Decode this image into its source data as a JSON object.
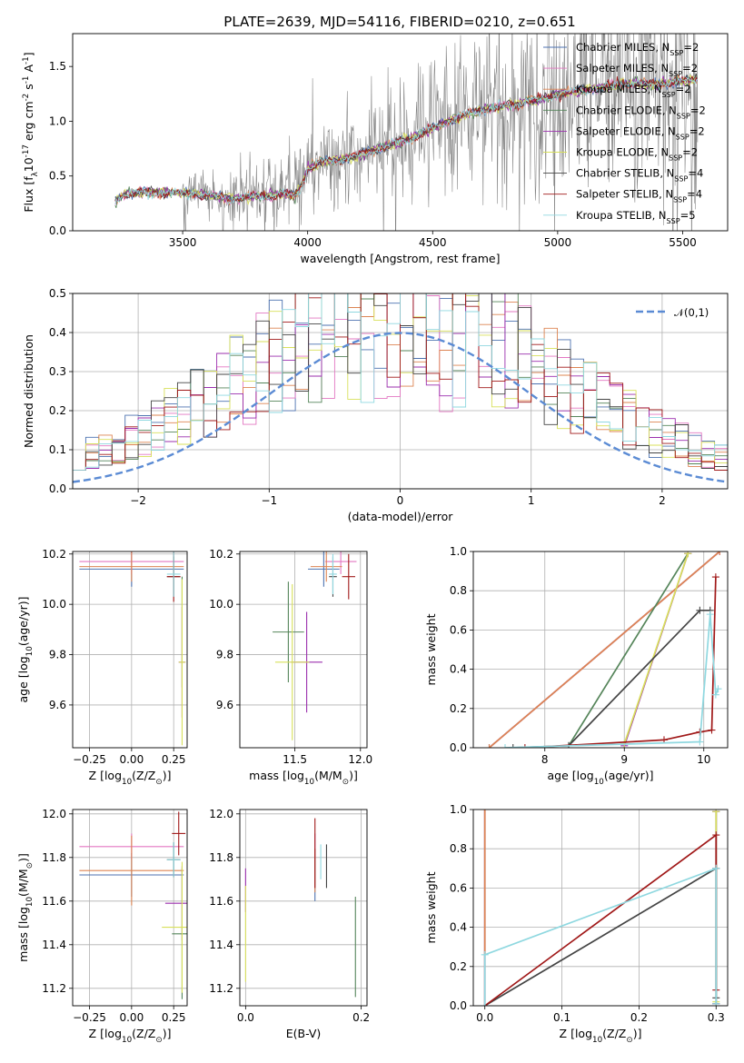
{
  "title": "PLATE=2639, MJD=54116, FIBERID=0210, z=0.651",
  "colors": {
    "chabrier_miles": "#4c72b0",
    "salpeter_miles": "#e377c2",
    "kroupa_miles": "#dd8452",
    "chabrier_elodie": "#55855a",
    "salpeter_elodie": "#9b2fae",
    "kroupa_elodie": "#d8e05a",
    "chabrier_stelib": "#444444",
    "salpeter_stelib": "#a01818",
    "kroupa_stelib": "#8fd8e0",
    "data": "#808080",
    "normal": "#5b8bd4"
  },
  "chart_data": [
    {
      "id": "spectrum",
      "type": "line",
      "title": "PLATE=2639, MJD=54116, FIBERID=0210, z=0.651",
      "xlabel": "wavelength [Angstrom, rest frame]",
      "ylabel": "Flux [f$_\\lambda$10$^{-17}$ erg cm$^{-2}$ s$^{-1}$ A$^{-1}$]",
      "xlim": [
        3060,
        5680
      ],
      "ylim": [
        0,
        1.8
      ],
      "xticks": [
        3500,
        4000,
        4500,
        5000,
        5500
      ],
      "yticks": [
        0.0,
        0.5,
        1.0,
        1.5
      ],
      "grid": false,
      "legend_position": "top-right",
      "legend": [
        "Chabrier MILES, N$_{SSP}$=2",
        "Salpeter MILES, N$_{SSP}$=2",
        "Kroupa MILES, N$_{SSP}$=2",
        "Chabrier ELODIE, N$_{SSP}$=2",
        "Salpeter ELODIE, N$_{SSP}$=2",
        "Kroupa ELODIE, N$_{SSP}$=2",
        "Chabrier STELIB, N$_{SSP}$=4",
        "Salpeter STELIB, N$_{SSP}$=4",
        "Kroupa STELIB, N$_{SSP}$=5"
      ],
      "model_knots": {
        "x": [
          3230,
          3260,
          3300,
          3400,
          3500,
          3600,
          3700,
          3800,
          3900,
          3950,
          3980,
          4000,
          4050,
          4100,
          4200,
          4300,
          4400,
          4500,
          4600,
          4700,
          4800,
          4900,
          5000,
          5100,
          5200,
          5300,
          5400,
          5500,
          5560
        ],
        "y": [
          0.28,
          0.34,
          0.36,
          0.37,
          0.36,
          0.34,
          0.31,
          0.33,
          0.35,
          0.33,
          0.45,
          0.58,
          0.64,
          0.65,
          0.7,
          0.78,
          0.85,
          0.95,
          1.05,
          1.12,
          1.16,
          1.2,
          1.26,
          1.3,
          1.33,
          1.36,
          1.35,
          1.38,
          1.4
        ]
      }
    },
    {
      "id": "residual-histogram",
      "type": "line",
      "xlabel": "(data-model)/error",
      "ylabel": "Normed distribution",
      "xlim": [
        -2.5,
        2.5
      ],
      "ylim": [
        0,
        0.5
      ],
      "xticks": [
        -2,
        -1,
        0,
        1,
        2
      ],
      "yticks": [
        0.0,
        0.1,
        0.2,
        0.3,
        0.4,
        0.5
      ],
      "grid": true,
      "legend_position": "top-right",
      "legend": [
        "$\\mathcal{N}(0,1)$"
      ],
      "bin_width": 0.1
    },
    {
      "id": "age-vs-metallicity",
      "type": "scatter",
      "xlabel": "Z [log$_{10}$(Z/Z$_\\odot$)]",
      "ylabel": "age  [log$_{10}$(age/yr)]",
      "xlim": [
        -0.35,
        0.33
      ],
      "ylim": [
        9.43,
        10.21
      ],
      "xticks": [
        -0.25,
        0.0,
        0.25
      ],
      "yticks": [
        9.6,
        9.8,
        10.0,
        10.2
      ],
      "grid": true,
      "errorbars": [
        {
          "model": "chabrier_miles",
          "x": 0.0,
          "y": 10.14,
          "xerr": 0.31,
          "yerr": 0.07
        },
        {
          "model": "salpeter_miles",
          "x": 0.0,
          "y": 10.17,
          "xerr": 0.31,
          "yerr": 0.05
        },
        {
          "model": "kroupa_miles",
          "x": 0.0,
          "y": 10.15,
          "xerr": 0.31,
          "yerr": 0.06
        },
        {
          "model": "chabrier_elodie",
          "x": 0.3,
          "y": 9.89,
          "xerr": 0.0,
          "yerr": 0.22
        },
        {
          "model": "salpeter_elodie",
          "x": 0.3,
          "y": 9.77,
          "xerr": 0.02,
          "yerr": 0.22
        },
        {
          "model": "kroupa_elodie",
          "x": 0.3,
          "y": 9.77,
          "xerr": 0.02,
          "yerr": 0.33
        },
        {
          "model": "chabrier_stelib",
          "x": 0.25,
          "y": 10.11,
          "xerr": 0.04,
          "yerr": 0.08
        },
        {
          "model": "salpeter_stelib",
          "x": 0.25,
          "y": 10.11,
          "xerr": 0.04,
          "yerr": 0.1
        },
        {
          "model": "kroupa_stelib",
          "x": 0.25,
          "y": 10.12,
          "xerr": 0.04,
          "yerr": 0.09
        }
      ]
    },
    {
      "id": "age-vs-mass",
      "type": "scatter",
      "xlabel": "mass [log$_{10}$(M/M$_\\odot$)]",
      "ylabel": "",
      "xlim": [
        11.08,
        12.05
      ],
      "ylim": [
        9.43,
        10.21
      ],
      "xticks": [
        11.5,
        12.0
      ],
      "yticks": [
        9.6,
        9.8,
        10.0,
        10.2
      ],
      "grid": true,
      "errorbars": [
        {
          "model": "chabrier_miles",
          "x": 11.72,
          "y": 10.14,
          "xerr": 0.12,
          "yerr": 0.07
        },
        {
          "model": "salpeter_miles",
          "x": 11.85,
          "y": 10.17,
          "xerr": 0.12,
          "yerr": 0.05
        },
        {
          "model": "kroupa_miles",
          "x": 11.74,
          "y": 10.15,
          "xerr": 0.12,
          "yerr": 0.06
        },
        {
          "model": "chabrier_elodie",
          "x": 11.45,
          "y": 9.89,
          "xerr": 0.12,
          "yerr": 0.2
        },
        {
          "model": "salpeter_elodie",
          "x": 11.59,
          "y": 9.77,
          "xerr": 0.12,
          "yerr": 0.2
        },
        {
          "model": "kroupa_elodie",
          "x": 11.48,
          "y": 9.77,
          "xerr": 0.13,
          "yerr": 0.31
        },
        {
          "model": "chabrier_stelib",
          "x": 11.79,
          "y": 10.11,
          "xerr": 0.03,
          "yerr": 0.08
        },
        {
          "model": "salpeter_stelib",
          "x": 11.91,
          "y": 10.11,
          "xerr": 0.05,
          "yerr": 0.09
        },
        {
          "model": "kroupa_stelib",
          "x": 11.79,
          "y": 10.12,
          "xerr": 0.03,
          "yerr": 0.08
        }
      ]
    },
    {
      "id": "mass-weight-vs-age",
      "type": "line",
      "xlabel": "age  [log$_{10}$(age/yr)]",
      "ylabel": "mass weight",
      "xlim": [
        7.1,
        10.3
      ],
      "ylim": [
        0,
        1.0
      ],
      "xticks": [
        8,
        9,
        10
      ],
      "yticks": [
        0.0,
        0.2,
        0.4,
        0.6,
        0.8,
        1.0
      ],
      "grid": true,
      "series": [
        {
          "model": "chabrier_miles",
          "x": [
            7.3,
            10.2
          ],
          "y": [
            0.0,
            1.0
          ]
        },
        {
          "model": "salpeter_miles",
          "x": [
            7.3,
            10.2
          ],
          "y": [
            0.0,
            1.0
          ]
        },
        {
          "model": "kroupa_miles",
          "x": [
            7.3,
            10.2
          ],
          "y": [
            0.0,
            1.0
          ]
        },
        {
          "model": "chabrier_elodie",
          "x": [
            8.3,
            9.8
          ],
          "y": [
            0.01,
            0.99
          ]
        },
        {
          "model": "salpeter_elodie",
          "x": [
            9.0,
            9.8
          ],
          "y": [
            0.01,
            0.99
          ]
        },
        {
          "model": "kroupa_elodie",
          "x": [
            9.0,
            9.8
          ],
          "y": [
            0.02,
            0.99
          ]
        },
        {
          "model": "chabrier_stelib",
          "x": [
            7.6,
            8.3,
            9.95,
            10.08
          ],
          "y": [
            0.0,
            0.01,
            0.7,
            0.7
          ]
        },
        {
          "model": "salpeter_stelib",
          "x": [
            7.75,
            9.5,
            9.95,
            10.1,
            10.15
          ],
          "y": [
            0.0,
            0.04,
            0.08,
            0.09,
            0.87
          ]
        },
        {
          "model": "kroupa_stelib",
          "x": [
            7.5,
            9.95,
            10.08,
            10.15,
            10.18
          ],
          "y": [
            0.0,
            0.03,
            0.68,
            0.27,
            0.3
          ]
        }
      ]
    },
    {
      "id": "mass-vs-metallicity",
      "type": "scatter",
      "xlabel": "Z [log$_{10}$(Z/Z$_\\odot$)]",
      "ylabel": "mass [log$_{10}$(M/M$_\\odot$)]",
      "xlim": [
        -0.35,
        0.33
      ],
      "ylim": [
        11.12,
        12.02
      ],
      "xticks": [
        -0.25,
        0.0,
        0.25
      ],
      "yticks": [
        11.2,
        11.4,
        11.6,
        11.8,
        12.0
      ],
      "grid": true,
      "errorbars": [
        {
          "model": "chabrier_miles",
          "x": 0.0,
          "y": 11.72,
          "xerr": 0.31,
          "yerr": 0.1
        },
        {
          "model": "salpeter_miles",
          "x": 0.0,
          "y": 11.85,
          "xerr": 0.31,
          "yerr": 0.06
        },
        {
          "model": "kroupa_miles",
          "x": 0.0,
          "y": 11.74,
          "xerr": 0.31,
          "yerr": 0.16
        },
        {
          "model": "chabrier_elodie",
          "x": 0.3,
          "y": 11.45,
          "xerr": 0.06,
          "yerr": 0.3
        },
        {
          "model": "salpeter_elodie",
          "x": 0.3,
          "y": 11.59,
          "xerr": 0.1,
          "yerr": 0.17
        },
        {
          "model": "kroupa_elodie",
          "x": 0.3,
          "y": 11.48,
          "xerr": 0.12,
          "yerr": 0.3
        },
        {
          "model": "chabrier_stelib",
          "x": 0.25,
          "y": 11.79,
          "xerr": 0.04,
          "yerr": 0.08
        },
        {
          "model": "salpeter_stelib",
          "x": 0.28,
          "y": 11.91,
          "xerr": 0.04,
          "yerr": 0.1
        },
        {
          "model": "kroupa_stelib",
          "x": 0.25,
          "y": 11.79,
          "xerr": 0.04,
          "yerr": 0.08
        }
      ]
    },
    {
      "id": "mass-vs-extinction",
      "type": "scatter",
      "xlabel": "E(B-V)",
      "ylabel": "",
      "xlim": [
        -0.01,
        0.21
      ],
      "ylim": [
        11.12,
        12.02
      ],
      "xticks": [
        0.0,
        0.2
      ],
      "yticks": [
        11.2,
        11.4,
        11.6,
        11.8,
        12.0
      ],
      "grid": true,
      "errorbars": [
        {
          "model": "chabrier_miles",
          "x": 0.12,
          "y": 11.72,
          "xerr": 0.0,
          "yerr": 0.12
        },
        {
          "model": "salpeter_miles",
          "x": 0.12,
          "y": 11.85,
          "xerr": 0.0,
          "yerr": 0.06
        },
        {
          "model": "kroupa_miles",
          "x": 0.12,
          "y": 11.74,
          "xerr": 0.0,
          "yerr": 0.1
        },
        {
          "model": "chabrier_elodie",
          "x": 0.19,
          "y": 11.39,
          "xerr": 0.0,
          "yerr": 0.23
        },
        {
          "model": "salpeter_elodie",
          "x": 0.0,
          "y": 11.65,
          "xerr": 0.0,
          "yerr": 0.1
        },
        {
          "model": "kroupa_elodie",
          "x": 0.0,
          "y": 11.45,
          "xerr": 0.0,
          "yerr": 0.22
        },
        {
          "model": "chabrier_stelib",
          "x": 0.14,
          "y": 11.76,
          "xerr": 0.0,
          "yerr": 0.1
        },
        {
          "model": "salpeter_stelib",
          "x": 0.12,
          "y": 11.82,
          "xerr": 0.0,
          "yerr": 0.16
        },
        {
          "model": "kroupa_stelib",
          "x": 0.13,
          "y": 11.78,
          "xerr": 0.0,
          "yerr": 0.08
        }
      ]
    },
    {
      "id": "mass-weight-vs-metallicity",
      "type": "line",
      "xlabel": "Z [log$_{10}$(Z/Z$_\\odot$)]",
      "ylabel": "mass weight",
      "xlim": [
        -0.015,
        0.315
      ],
      "ylim": [
        0,
        1.0
      ],
      "xticks": [
        0.0,
        0.1,
        0.2,
        0.3
      ],
      "yticks": [
        0.0,
        0.2,
        0.4,
        0.6,
        0.8,
        1.0
      ],
      "grid": true,
      "series": [
        {
          "model": "chabrier_miles",
          "x": [
            0.0,
            0.0
          ],
          "y": [
            0.0,
            1.0
          ]
        },
        {
          "model": "salpeter_miles",
          "x": [
            0.0,
            0.0
          ],
          "y": [
            0.0,
            1.0
          ]
        },
        {
          "model": "kroupa_miles",
          "x": [
            0.0,
            0.0
          ],
          "y": [
            0.0,
            1.0
          ]
        },
        {
          "model": "chabrier_elodie",
          "x": [
            0.3,
            0.3
          ],
          "y": [
            0.01,
            0.99
          ]
        },
        {
          "model": "salpeter_elodie",
          "x": [
            0.3,
            0.3
          ],
          "y": [
            0.01,
            0.99
          ]
        },
        {
          "model": "kroupa_elodie",
          "x": [
            0.3,
            0.3
          ],
          "y": [
            0.02,
            0.99
          ]
        },
        {
          "model": "chabrier_stelib",
          "x": [
            0.0,
            0.3,
            0.3
          ],
          "y": [
            0.0,
            0.7,
            0.04
          ]
        },
        {
          "model": "salpeter_stelib",
          "x": [
            0.0,
            0.3,
            0.3
          ],
          "y": [
            0.0,
            0.87,
            0.08
          ]
        },
        {
          "model": "kroupa_stelib",
          "x": [
            0.0,
            0.0,
            0.3,
            0.3
          ],
          "y": [
            0.0,
            0.26,
            0.7,
            0.01
          ]
        }
      ]
    }
  ]
}
